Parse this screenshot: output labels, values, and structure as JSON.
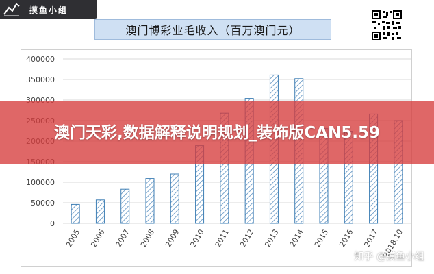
{
  "logo": {
    "text": "摸鱼小组",
    "icon": "zigzag-line-icon"
  },
  "qr_icon": "qr-code-icon",
  "banner": {
    "text": "澳门天彩,数据解释说明规划_装饰版CAN5.59"
  },
  "footer_watermark": "知乎 @摸鱼小组",
  "colors": {
    "bar_stroke": "#3f7fb5",
    "bar_hatch": "#3f7fb5",
    "title_bg": "#cfe0f3",
    "banner_bg": "#d63c3c"
  },
  "chart_data": {
    "type": "bar",
    "title": "澳门博彩业毛收入（百万澳门元）",
    "categories": [
      "2005",
      "2006",
      "2007",
      "2008",
      "2009",
      "2010",
      "2011",
      "2012",
      "2013",
      "2014",
      "2015",
      "2016",
      "2017",
      "2018.10"
    ],
    "values": [
      46000,
      57000,
      83000,
      109000,
      120000,
      189000,
      268000,
      304000,
      361000,
      352000,
      231000,
      224000,
      266000,
      250000
    ],
    "ylim": [
      0,
      400000
    ],
    "yticks": [
      0,
      50000,
      100000,
      150000,
      200000,
      250000,
      300000,
      350000,
      400000
    ],
    "ytick_labels": [
      "0",
      "50000",
      "100000",
      "150000",
      "200000",
      "250000",
      "300000",
      "350000",
      "400000"
    ],
    "grid": "horizontal",
    "xlabel": "",
    "ylabel": ""
  }
}
